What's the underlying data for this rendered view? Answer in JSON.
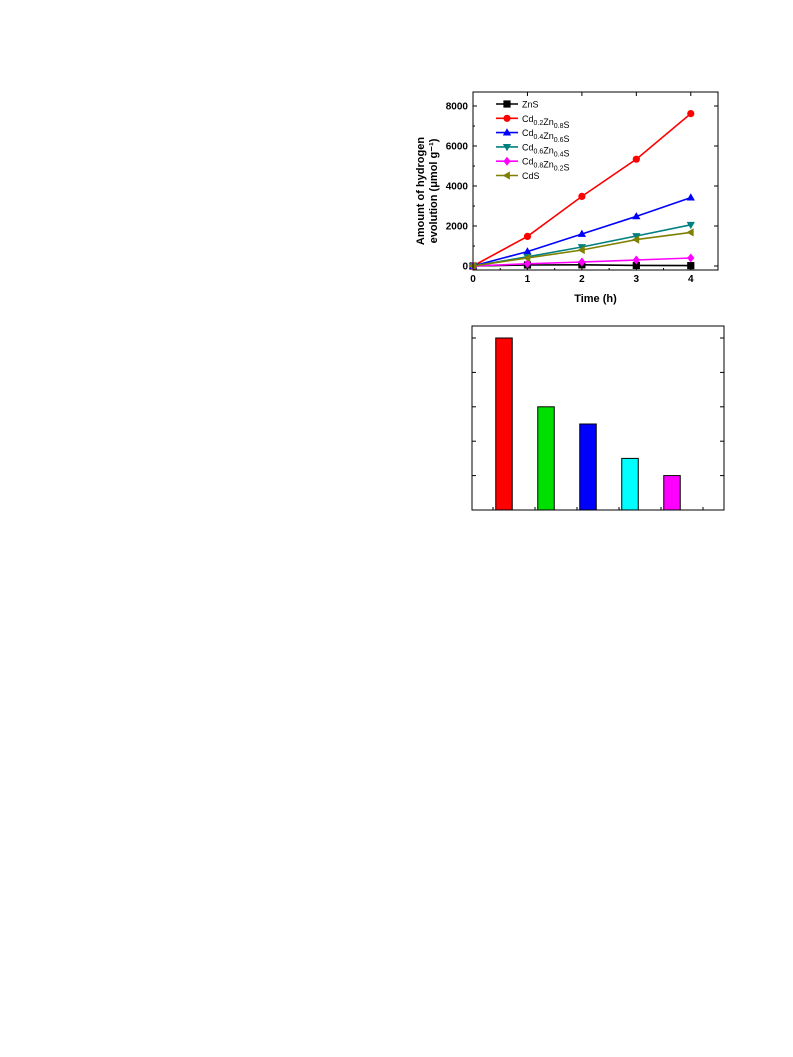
{
  "chart_data": [
    {
      "type": "line",
      "title": "",
      "xlabel": "Time (h)",
      "ylabel_line1": "Amount of hydrogen",
      "ylabel_line2": "evolution (μmol g⁻¹)",
      "xlim": [
        0,
        4.5
      ],
      "ylim": [
        -200,
        8700
      ],
      "x_ticks": [
        0,
        1,
        2,
        3,
        4
      ],
      "y_ticks": [
        0,
        2000,
        4000,
        6000,
        8000
      ],
      "legend_position": "top-left",
      "x": [
        0,
        1,
        2,
        3,
        4
      ],
      "series": [
        {
          "name": "ZnS",
          "name_parts": [
            [
              "ZnS",
              ""
            ]
          ],
          "color": "#000000",
          "marker": "square",
          "values": [
            0,
            50,
            60,
            30,
            20
          ]
        },
        {
          "name": "Cd0.2Zn0.8S",
          "name_parts": [
            [
              "Cd",
              "0.2"
            ],
            [
              "Zn",
              "0.8"
            ],
            [
              "S",
              ""
            ]
          ],
          "color": "#ff0000",
          "marker": "circle",
          "values": [
            0,
            1480,
            3480,
            5340,
            7620
          ]
        },
        {
          "name": "Cd0.4Zn0.6S",
          "name_parts": [
            [
              "Cd",
              "0.4"
            ],
            [
              "Zn",
              "0.6"
            ],
            [
              "S",
              ""
            ]
          ],
          "color": "#0000ff",
          "marker": "triangle-up",
          "values": [
            0,
            720,
            1600,
            2480,
            3420
          ]
        },
        {
          "name": "Cd0.6Zn0.4S",
          "name_parts": [
            [
              "Cd",
              "0.6"
            ],
            [
              "Zn",
              "0.4"
            ],
            [
              "S",
              ""
            ]
          ],
          "color": "#008080",
          "marker": "triangle-down",
          "values": [
            0,
            460,
            950,
            1500,
            2060
          ]
        },
        {
          "name": "Cd0.8Zn0.2S",
          "name_parts": [
            [
              "Cd",
              "0.8"
            ],
            [
              "Zn",
              "0.2"
            ],
            [
              "S",
              ""
            ]
          ],
          "color": "#ff00ff",
          "marker": "diamond",
          "values": [
            0,
            110,
            200,
            300,
            400
          ]
        },
        {
          "name": "CdS",
          "name_parts": [
            [
              "CdS",
              ""
            ]
          ],
          "color": "#808000",
          "marker": "triangle-left",
          "values": [
            0,
            400,
            800,
            1320,
            1680
          ]
        }
      ]
    },
    {
      "type": "bar",
      "title": "",
      "xlabel": "",
      "ylabel": "",
      "ylim": [
        0,
        100
      ],
      "categories": [
        "",
        "",
        "",
        "",
        ""
      ],
      "values": [
        100,
        60,
        50,
        30,
        20
      ],
      "colors": [
        "#ff0000",
        "#00e000",
        "#0000ff",
        "#00ffff",
        "#ff00ff"
      ]
    }
  ]
}
